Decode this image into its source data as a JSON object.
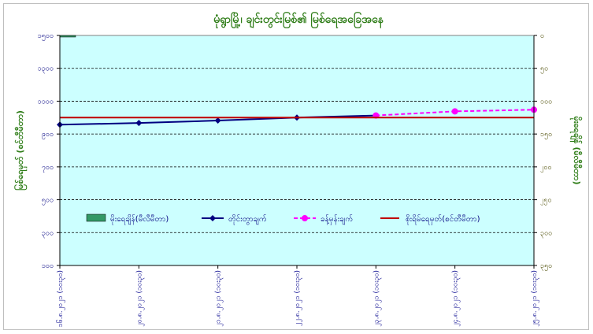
{
  "chart_data": {
    "type": "line",
    "title": "မုံရွာမြို့၊ ချင်းတွင်းမြစ်၏ မြစ်ရေအခြေအနေ",
    "ylabel_left": "မြစ်ရေမှတ် (စင်တီမီတာ)",
    "ylabel_right": "မိုးရေချိန် (မီလီမီတာ)",
    "left_axis": {
      "min": 100,
      "max": 1500,
      "ticks": [
        100,
        300,
        500,
        700,
        900,
        1100,
        1300,
        1500
      ],
      "tick_labels": [
        "၁၀၀",
        "၃၀၀",
        "၅၀၀",
        "၇၀၀",
        "၉၀၀",
        "၁၁၀၀",
        "၁၃၀၀",
        "၁၅၀၀"
      ]
    },
    "right_axis": {
      "min": 0,
      "max": 350,
      "reversed": true,
      "ticks": [
        0,
        50,
        100,
        150,
        200,
        250,
        300,
        350
      ],
      "tick_labels": [
        "၀",
        "၅၀",
        "၁၀၀",
        "၁၅၀",
        "၂၀၀",
        "၂၅၀",
        "၃၀၀",
        "၃၅၀"
      ]
    },
    "categories": [
      "၁၆.၈.၂၀၂၁ (၁၀း၃၀)",
      "၂၀.၈.၂၀၂၁ (၁၀း၃၀)",
      "၂၁.၈.၂၀၂၁ (၁၀း၃၀)",
      "၂၂.၈.၂၀၂၁ (၁၀း၃၀)",
      "၂၃.၈.၂၀၂၁ (၁၀း၃၀)",
      "၂၄.၈.၂၀၂၁ (၁၀း၃၀)",
      "၂၅.၈.၂၀၂၁ (၁၀း၃၀)"
    ],
    "series": [
      {
        "name": "မိုးရေချိန်(မီလီမီတာ)",
        "kind": "bar",
        "axis": "right",
        "color": "#339966",
        "values": [
          1,
          null,
          null,
          null,
          null,
          null,
          null
        ]
      },
      {
        "name": "တိုင်းတွာချက်",
        "kind": "line",
        "axis": "left",
        "color": "#000080",
        "values": [
          957,
          967,
          982,
          1000,
          1013,
          null,
          null
        ]
      },
      {
        "name": "ခန့်မှန်းချက်",
        "kind": "line-dashed",
        "axis": "left",
        "color": "#ff00ff",
        "values": [
          null,
          null,
          null,
          null,
          1013,
          1038,
          1048
        ]
      },
      {
        "name": "စိုးရိမ်ရေမှတ်(စင်တီမီတာ)",
        "kind": "hline",
        "axis": "left",
        "color": "#c00000",
        "value": 1000
      }
    ],
    "grid": true,
    "legend_position": "inside-left-lower",
    "plot_background": "#ccffff"
  }
}
